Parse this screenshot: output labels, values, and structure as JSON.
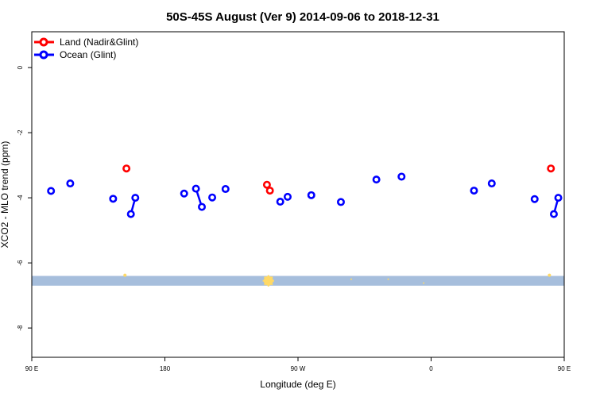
{
  "chart_data": {
    "type": "scatter",
    "title": "50S-45S August (Ver 9)   2014-09-06 to 2018-12-31",
    "xlabel": "Longitude (deg E)",
    "ylabel": "XCO2 - MLO trend (ppm)",
    "xlim": [
      90,
      450
    ],
    "ylim": [
      -8.9,
      1.1
    ],
    "x_ticks": [
      {
        "value": 90,
        "label": "90 E"
      },
      {
        "value": 180,
        "label": "180"
      },
      {
        "value": 270,
        "label": "90 W"
      },
      {
        "value": 360,
        "label": "0"
      },
      {
        "value": 450,
        "label": "90 E"
      },
      {
        "value": 540,
        "label": "180"
      }
    ],
    "y_ticks": [
      {
        "value": 0,
        "label": "0"
      },
      {
        "value": -2,
        "label": "-2"
      },
      {
        "value": -4,
        "label": "-4"
      },
      {
        "value": -6,
        "label": "-6"
      },
      {
        "value": -8,
        "label": "-8"
      }
    ],
    "legend_position": "top-left",
    "series": [
      {
        "name": "Land (Nadir&Glint)",
        "color": "#ff0000",
        "segments": [
          [
            [
              154,
              -3.1
            ]
          ],
          [
            [
              249,
              -3.6
            ],
            [
              251,
              -3.78
            ]
          ],
          [
            [
              441,
              -3.1
            ]
          ]
        ]
      },
      {
        "name": "Ocean (Glint)",
        "color": "#0000ff",
        "segments": [
          [
            [
              103,
              -3.79
            ]
          ],
          [
            [
              116,
              -3.56
            ]
          ],
          [
            [
              145,
              -4.03
            ]
          ],
          [
            [
              157,
              -4.5
            ],
            [
              160,
              -4.0
            ]
          ],
          [
            [
              193,
              -3.87
            ]
          ],
          [
            [
              201,
              -3.72
            ],
            [
              205,
              -4.28
            ]
          ],
          [
            [
              212,
              -3.99
            ]
          ],
          [
            [
              221,
              -3.73
            ]
          ],
          [
            [
              258,
              -4.12
            ]
          ],
          [
            [
              263,
              -3.97
            ]
          ],
          [
            [
              279,
              -3.92
            ]
          ],
          [
            [
              299,
              -4.13
            ]
          ],
          [
            [
              323,
              -3.44
            ]
          ],
          [
            [
              340,
              -3.35
            ]
          ],
          [
            [
              389,
              -3.78
            ]
          ],
          [
            [
              401,
              -3.56
            ]
          ],
          [
            [
              430,
              -4.04
            ]
          ],
          [
            [
              443,
              -4.5
            ],
            [
              446,
              -4.0
            ]
          ]
        ]
      }
    ],
    "band": {
      "y_min": -6.7,
      "y_max": -6.4,
      "color": "#a6bedc"
    },
    "band_markers": [
      {
        "x": 153,
        "y": -6.38,
        "size": 4
      },
      {
        "x": 250,
        "y": -6.55,
        "size": 12
      },
      {
        "x": 306,
        "y": -6.5,
        "size": 2
      },
      {
        "x": 331,
        "y": -6.5,
        "size": 2
      },
      {
        "x": 355,
        "y": -6.62,
        "size": 2
      },
      {
        "x": 440,
        "y": -6.38,
        "size": 4
      }
    ],
    "band_marker_color": "#ffd966"
  }
}
